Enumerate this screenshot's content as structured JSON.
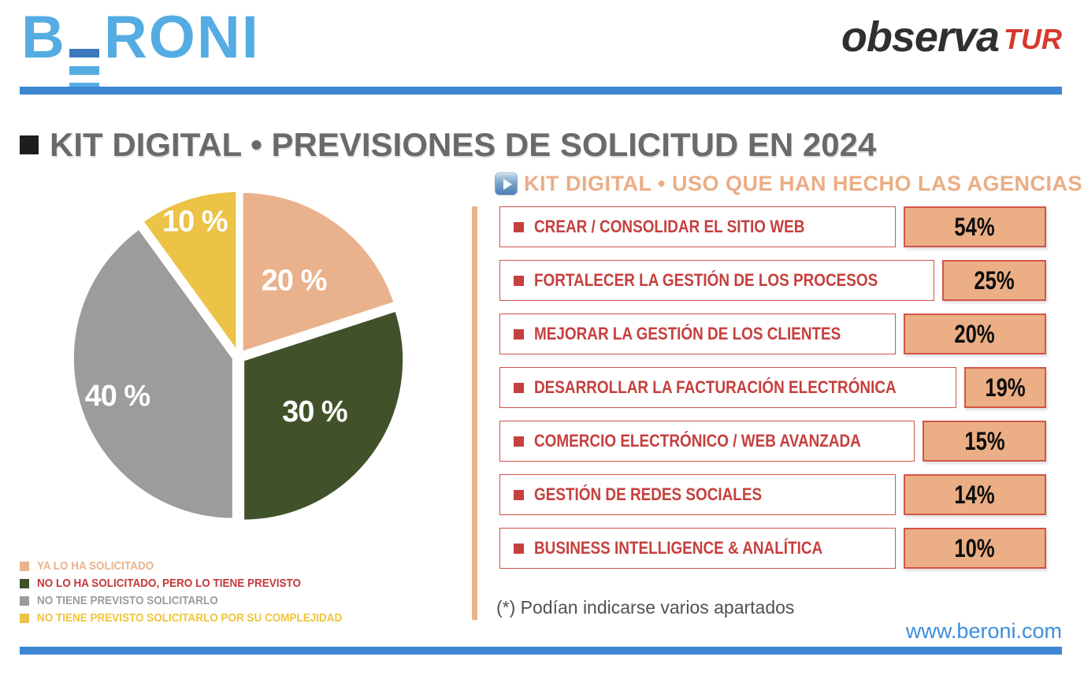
{
  "header": {
    "beroni_logo": {
      "prefix": "B",
      "suffix": "RONI"
    },
    "observatur_logo": {
      "text": "observa",
      "suffix": "TUR"
    }
  },
  "title": {
    "text": "KIT DIGITAL • PREVISIONES DE SOLICITUD EN 2024"
  },
  "chart_data": [
    {
      "type": "pie",
      "title": "KIT DIGITAL • PREVISIONES DE SOLICITUD EN 2024",
      "unit": "%",
      "value_suffix": " %",
      "start_angle_deg": 0,
      "direction": "clockwise",
      "slices": [
        {
          "label": "YA LO HA SOLICITADO",
          "value": 20,
          "color": "#EAB28C"
        },
        {
          "label": "NO LO HA SOLICITADO, PERO LO TIENE PREVISTO",
          "value": 30,
          "color": "#41522B"
        },
        {
          "label": "NO TIENE PREVISTO SOLICITARLO",
          "value": 40,
          "color": "#9C9C9C"
        },
        {
          "label": "NO TIENE PREVISTO SOLICITARLO POR SU COMPLEJIDAD",
          "value": 10,
          "color": "#ECC247"
        }
      ]
    },
    {
      "type": "table",
      "title": "KIT DIGITAL • USO QUE HAN HECHO LAS AGENCIAS",
      "categories": [
        "CREAR / CONSOLIDAR EL SITIO WEB",
        "FORTALECER LA GESTIÓN DE LOS PROCESOS",
        "MEJORAR LA GESTIÓN DE LOS CLIENTES",
        "DESARROLLAR LA FACTURACIÓN ELECTRÓNICA",
        "COMERCIO ELECTRÓNICO / WEB AVANZADA",
        "GESTIÓN DE REDES SOCIALES",
        "BUSINESS INTELLIGENCE & ANALÍTICA"
      ],
      "values": [
        54,
        25,
        20,
        19,
        15,
        14,
        10
      ],
      "unit": "%"
    }
  ],
  "legend": {
    "items": [
      {
        "label": "YA LO HA SOLICITADO",
        "swatch_color": "#EAB28C",
        "text_color": "#EBB28C"
      },
      {
        "label": "NO LO HA SOLICITADO, PERO LO TIENE PREVISTO",
        "swatch_color": "#41522B",
        "text_color": "#C5383A"
      },
      {
        "label": "NO TIENE PREVISTO SOLICITARLO",
        "swatch_color": "#9C9C9C",
        "text_color": "#9C9C9C"
      },
      {
        "label": "NO TIENE PREVISTO SOLICITARLO POR SU COMPLEJIDAD",
        "swatch_color": "#ECC247",
        "text_color": "#EFC43B"
      }
    ]
  },
  "right_panel": {
    "header": "KIT DIGITAL • USO QUE HAN HECHO LAS AGENCIAS",
    "rows": [
      {
        "label": "CREAR / CONSOLIDAR EL SITIO WEB",
        "value": "54%"
      },
      {
        "label": "FORTALECER LA GESTIÓN DE LOS PROCESOS",
        "value": "25%"
      },
      {
        "label": "MEJORAR LA GESTIÓN DE LOS CLIENTES",
        "value": "20%"
      },
      {
        "label": "DESARROLLAR LA FACTURACIÓN ELECTRÓNICA",
        "value": "19%"
      },
      {
        "label": "COMERCIO ELECTRÓNICO / WEB AVANZADA",
        "value": "15%"
      },
      {
        "label": "GESTIÓN DE REDES SOCIALES",
        "value": "14%"
      },
      {
        "label": "BUSINESS INTELLIGENCE & ANALÍTICA",
        "value": "10%"
      }
    ],
    "footnote": "(*) Podían indicarse varios apartados"
  },
  "footer": {
    "website": "www.beroni.com"
  },
  "colors": {
    "bar_blue": "#3E86D2",
    "logo_blue": "#55ACE2",
    "logo_blue_dark": "#3B79BE",
    "observa_dark": "#2F2F2F",
    "observa_red": "#D6392E",
    "title_gray": "#6A6A6A",
    "peach": "#EBAD84",
    "divider_tan": "#EAB28B",
    "box_tan": "#EBAE85",
    "accent_red": "#C5403E",
    "border_red": "#D2554A",
    "footnote_gray": "#515155",
    "website_blue": "#3E8EDC"
  }
}
